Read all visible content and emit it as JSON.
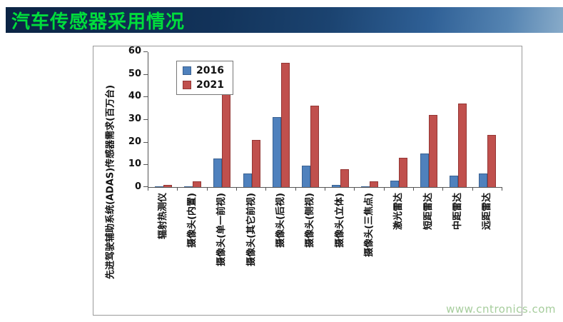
{
  "header": {
    "title": "汽车传感器采用情况"
  },
  "watermark": {
    "text": "www.cntronics.com"
  },
  "chart_data": {
    "type": "bar",
    "title": "",
    "xlabel": "",
    "ylabel": "先进驾驶辅助系统(ADAS)传感器需求(百万台)",
    "ylim": [
      0,
      60
    ],
    "ytick_interval": 10,
    "grid": false,
    "legend_position": "inside-top-left",
    "categories": [
      "辐射热测仪",
      "摄像头(内置)",
      "摄像头(单一前视)",
      "摄像头(其它前视)",
      "摄像头(后视)",
      "摄像头(侧视)",
      "摄像头(立体)",
      "摄像头(三焦点)",
      "激光雷达",
      "短距雷达",
      "中距雷达",
      "远距雷达"
    ],
    "series": [
      {
        "name": "2016",
        "color": "#4F81BD",
        "border_color": "#3A6191",
        "values": [
          0.2,
          0.4,
          12.5,
          6,
          31,
          9.5,
          1,
          0.4,
          3,
          15,
          5,
          6
        ]
      },
      {
        "name": "2021",
        "color": "#C0504D",
        "border_color": "#943634",
        "values": [
          1,
          2.5,
          43,
          21,
          55,
          36,
          8,
          2.5,
          13,
          32,
          37,
          23
        ]
      }
    ]
  }
}
